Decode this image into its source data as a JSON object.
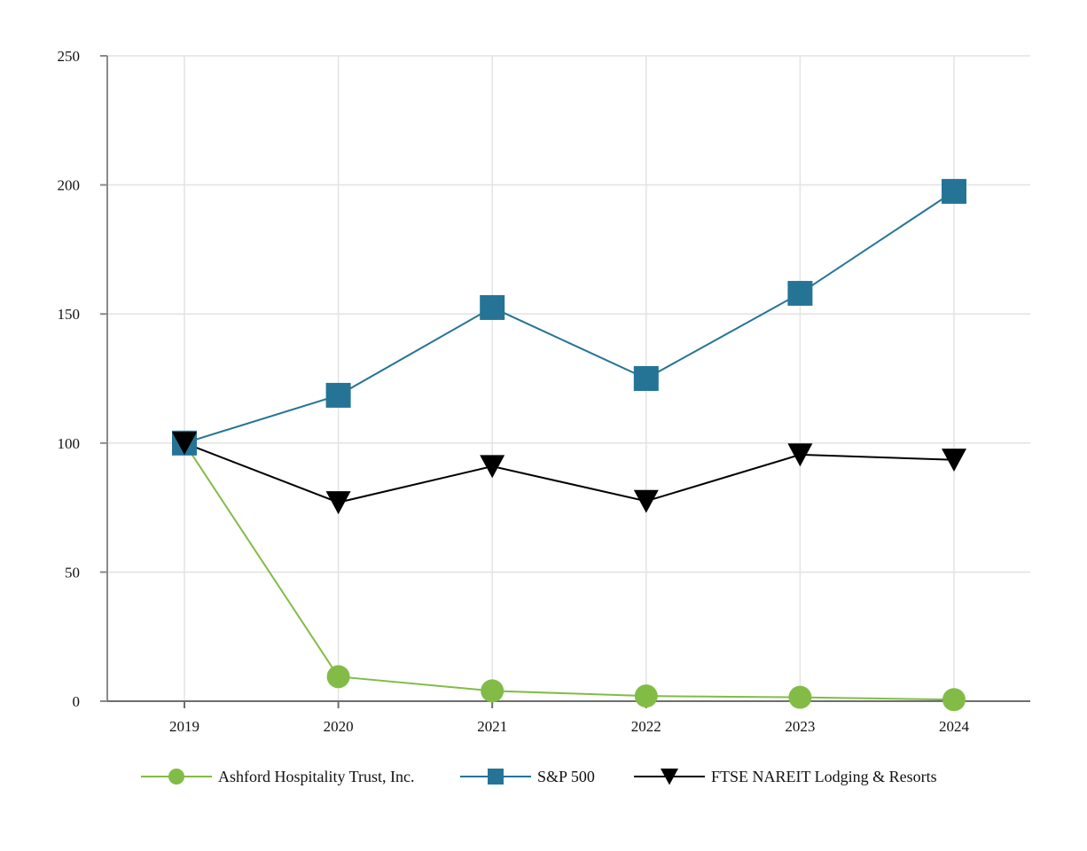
{
  "chart_data": {
    "type": "line",
    "title": "",
    "xlabel": "",
    "ylabel": "",
    "categories": [
      "2019",
      "2020",
      "2021",
      "2022",
      "2023",
      "2024"
    ],
    "yticks": [
      "0",
      "50",
      "100",
      "150",
      "200",
      "250"
    ],
    "ylim": [
      0,
      250
    ],
    "grid": true,
    "legend_position": "bottom",
    "series": [
      {
        "name": "Ashford Hospitality Trust, Inc.",
        "values": [
          100,
          9.5,
          4,
          2,
          1.5,
          0.6
        ],
        "color": "#82bc47",
        "marker": "circle"
      },
      {
        "name": "S&P 500",
        "values": [
          100,
          118.5,
          152.5,
          125,
          158,
          197.5
        ],
        "color": "#257496",
        "marker": "square"
      },
      {
        "name": "FTSE NAREIT Lodging & Resorts",
        "values": [
          100,
          77,
          91,
          77.5,
          95.5,
          93.5
        ],
        "color": "#000000",
        "marker": "triangle-down"
      }
    ]
  }
}
